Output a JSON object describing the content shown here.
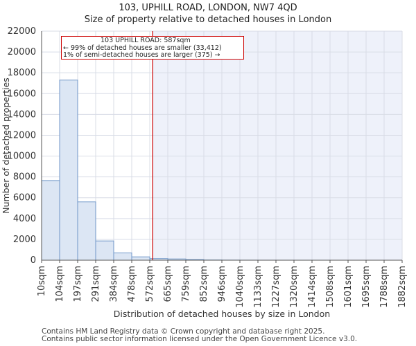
{
  "header": {
    "title": "103, UPHILL ROAD, LONDON, NW7 4QD",
    "subtitle": "Size of property relative to detached houses in London"
  },
  "chart_data": {
    "type": "bar",
    "title": "103, UPHILL ROAD, LONDON, NW7 4QD",
    "subtitle": "Size of property relative to detached houses in London",
    "xlabel": "Distribution of detached houses by size in London",
    "ylabel": "Number of detached properties",
    "ylim": [
      0,
      22000
    ],
    "yticks": [
      0,
      2000,
      4000,
      6000,
      8000,
      10000,
      12000,
      14000,
      16000,
      18000,
      20000,
      22000
    ],
    "bin_edges": [
      "10sqm",
      "104sqm",
      "197sqm",
      "291sqm",
      "384sqm",
      "478sqm",
      "572sqm",
      "665sqm",
      "759sqm",
      "852sqm",
      "946sqm",
      "1040sqm",
      "1133sqm",
      "1227sqm",
      "1320sqm",
      "1414sqm",
      "1508sqm",
      "1601sqm",
      "1695sqm",
      "1788sqm",
      "1882sqm"
    ],
    "values": [
      7650,
      17300,
      5600,
      1850,
      700,
      320,
      150,
      120,
      60,
      20,
      10,
      5,
      3,
      2,
      1,
      1,
      0,
      0,
      0,
      0
    ],
    "grid": true,
    "marker": {
      "value_sqm": 587,
      "bin_position": 6.16,
      "label_line1": "103 UPHILL ROAD: 587sqm",
      "label_line2": "← 99% of detached houses are smaller (33,412)",
      "label_line3": "1% of semi-detached houses are larger (375) →"
    },
    "colors": {
      "bar_fill": "#dce6f4",
      "bar_stroke": "#6f96c8",
      "marker_line": "#cc0000",
      "highlight_bg": "#eef1fa",
      "grid": "#d8dce6"
    }
  },
  "footer": {
    "line1": "Contains HM Land Registry data © Crown copyright and database right 2025.",
    "line2": "Contains public sector information licensed under the Open Government Licence v3.0."
  }
}
